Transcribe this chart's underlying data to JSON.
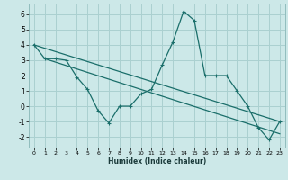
{
  "xlabel": "Humidex (Indice chaleur)",
  "background_color": "#cce8e8",
  "grid_color": "#aad0d0",
  "line_color": "#1a6e6a",
  "xlim": [
    -0.5,
    23.5
  ],
  "ylim": [
    -2.7,
    6.7
  ],
  "xticks": [
    0,
    1,
    2,
    3,
    4,
    5,
    6,
    7,
    8,
    9,
    10,
    11,
    12,
    13,
    14,
    15,
    16,
    17,
    18,
    19,
    20,
    21,
    22,
    23
  ],
  "yticks": [
    -2,
    -1,
    0,
    1,
    2,
    3,
    4,
    5,
    6
  ],
  "series1_x": [
    0,
    1,
    2,
    3,
    4,
    5,
    6,
    7,
    8,
    9,
    10,
    11,
    12,
    13,
    14,
    15,
    16,
    17,
    18,
    19,
    20,
    21,
    22,
    23
  ],
  "series1_y": [
    4.0,
    3.1,
    3.1,
    3.0,
    1.9,
    1.1,
    -0.3,
    -1.1,
    0.0,
    0.0,
    0.8,
    1.1,
    2.7,
    4.2,
    6.2,
    5.6,
    2.0,
    2.0,
    2.0,
    1.0,
    0.0,
    -1.4,
    -2.2,
    -1.0
  ],
  "series2_x": [
    0,
    23
  ],
  "series2_y": [
    4.0,
    -1.0
  ],
  "series3_x": [
    1,
    23
  ],
  "series3_y": [
    3.1,
    -1.8
  ]
}
